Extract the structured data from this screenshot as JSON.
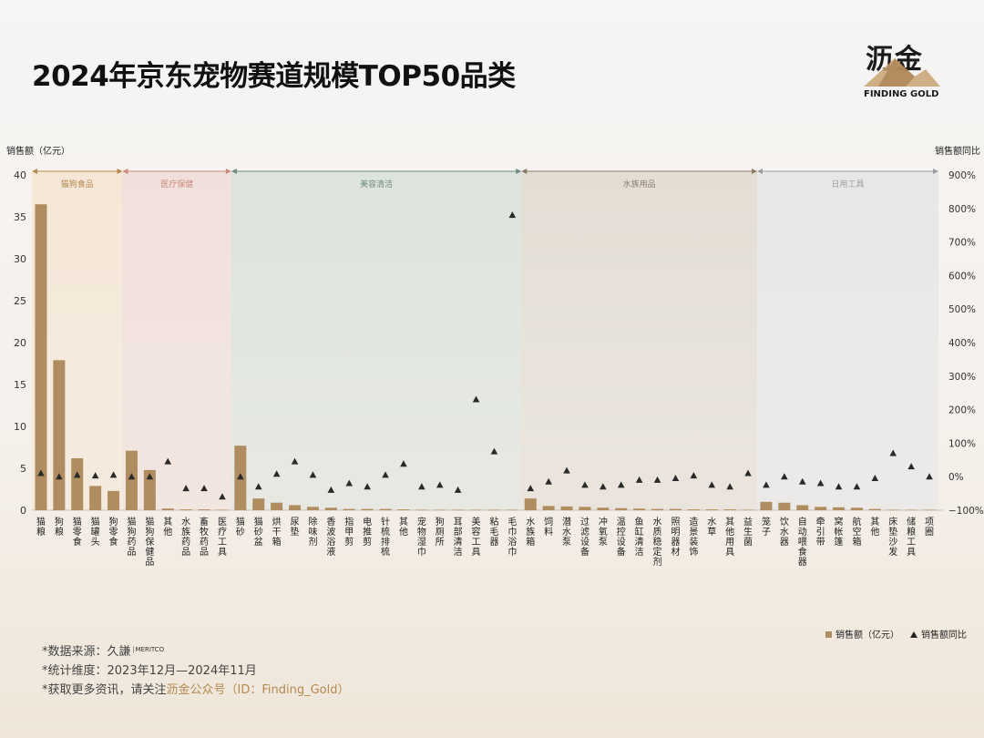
{
  "title": "2024年京东宠物赛道规模TOP50品类",
  "logo": {
    "cn": "沥金",
    "en": "FINDING GOLD"
  },
  "footnotes": {
    "source_prefix": "*数据来源：",
    "source_name": "久謙",
    "source_logo_text": "MERITCO",
    "period": "*统计维度：2023年12月—2024年11月",
    "more_prefix": "*获取更多资讯，请关注",
    "more_accent": "沥金公众号（ID：Finding_Gold）"
  },
  "colors": {
    "bar": "#b08d60",
    "marker": "#2a2a2a",
    "groups": [
      "#f5e7d6",
      "#f1dfdb",
      "#dde3dd",
      "#e3ddd4",
      "#e7e7e8"
    ],
    "group_text": [
      "#b5894f",
      "#c98a7f",
      "#6f8a82",
      "#8a7a6a",
      "#9a9ca3"
    ]
  },
  "chart_data": {
    "type": "bar",
    "ylabel": "销售额（亿元）",
    "y2label": "销售额同比",
    "ylim": [
      0,
      40
    ],
    "yticks": [
      0,
      5,
      10,
      15,
      20,
      25,
      30,
      35,
      40
    ],
    "y2lim": [
      -100,
      900
    ],
    "y2ticks": [
      -100,
      0,
      100,
      200,
      300,
      400,
      500,
      600,
      700,
      800,
      900
    ],
    "y2tick_labels": [
      "−100%",
      "0%",
      "100%",
      "200%",
      "300%",
      "400%",
      "500%",
      "600%",
      "700%",
      "800%",
      "900%"
    ],
    "groups": [
      {
        "name": "猫狗食品",
        "start": 0,
        "end": 4
      },
      {
        "name": "医疗保健",
        "start": 5,
        "end": 10
      },
      {
        "name": "美容清洁",
        "start": 11,
        "end": 26
      },
      {
        "name": "水族用品",
        "start": 27,
        "end": 39
      },
      {
        "name": "日用工具",
        "start": 40,
        "end": 49
      }
    ],
    "categories": [
      "猫粮",
      "狗粮",
      "猫零食",
      "猫罐头",
      "狗零食",
      "猫狗药品",
      "猫狗保健品",
      "其他",
      "水族药品",
      "畜牧药品",
      "医疗工具",
      "猫砂",
      "猫砂盆",
      "烘干箱",
      "尿垫",
      "除味剂",
      "香波浴液",
      "指甲剪",
      "电推剪",
      "针梳排梳",
      "其他",
      "宠物湿巾",
      "狗厕所",
      "耳部清洁",
      "美容工具",
      "粘毛器",
      "毛巾浴巾",
      "水族箱",
      "饲料",
      "潜水泵",
      "过滤设备",
      "冲氧泵",
      "温控设备",
      "鱼缸清洁",
      "水质稳定剂",
      "照明器材",
      "造景装饰",
      "水草",
      "其他用具",
      "益生菌",
      "笼子",
      "饮水器",
      "自动喂食器",
      "牵引带",
      "窝帐篷",
      "航空箱",
      "其他",
      "床垫沙发",
      "储粮工具",
      "项圈"
    ],
    "series": [
      {
        "name": "销售额（亿元）",
        "type": "bar",
        "values": [
          36.5,
          17.9,
          6.2,
          2.9,
          2.3,
          7.1,
          4.8,
          0.2,
          0.1,
          0.1,
          0.05,
          7.7,
          1.4,
          0.9,
          0.6,
          0.4,
          0.3,
          0.15,
          0.15,
          0.15,
          0.1,
          0.05,
          0.05,
          0.05,
          0.05,
          0.05,
          0.05,
          1.4,
          0.5,
          0.45,
          0.4,
          0.3,
          0.25,
          0.2,
          0.15,
          0.15,
          0.1,
          0.1,
          0.1,
          0.05,
          1.0,
          0.9,
          0.6,
          0.4,
          0.35,
          0.3,
          0.15,
          0.05,
          0.05,
          0.05
        ]
      },
      {
        "name": "销售额同比",
        "type": "scatter",
        "axis": "right",
        "values": [
          10,
          0,
          5,
          3,
          5,
          0,
          0,
          45,
          -35,
          -35,
          -60,
          0,
          -30,
          8,
          45,
          5,
          -40,
          -20,
          -30,
          5,
          38,
          -30,
          -25,
          -40,
          230,
          75,
          780,
          -35,
          -15,
          18,
          -25,
          -30,
          -25,
          -10,
          -10,
          -5,
          3,
          -25,
          -30,
          10,
          -25,
          0,
          -15,
          -20,
          -30,
          -30,
          -5,
          70,
          30,
          0
        ]
      }
    ]
  }
}
